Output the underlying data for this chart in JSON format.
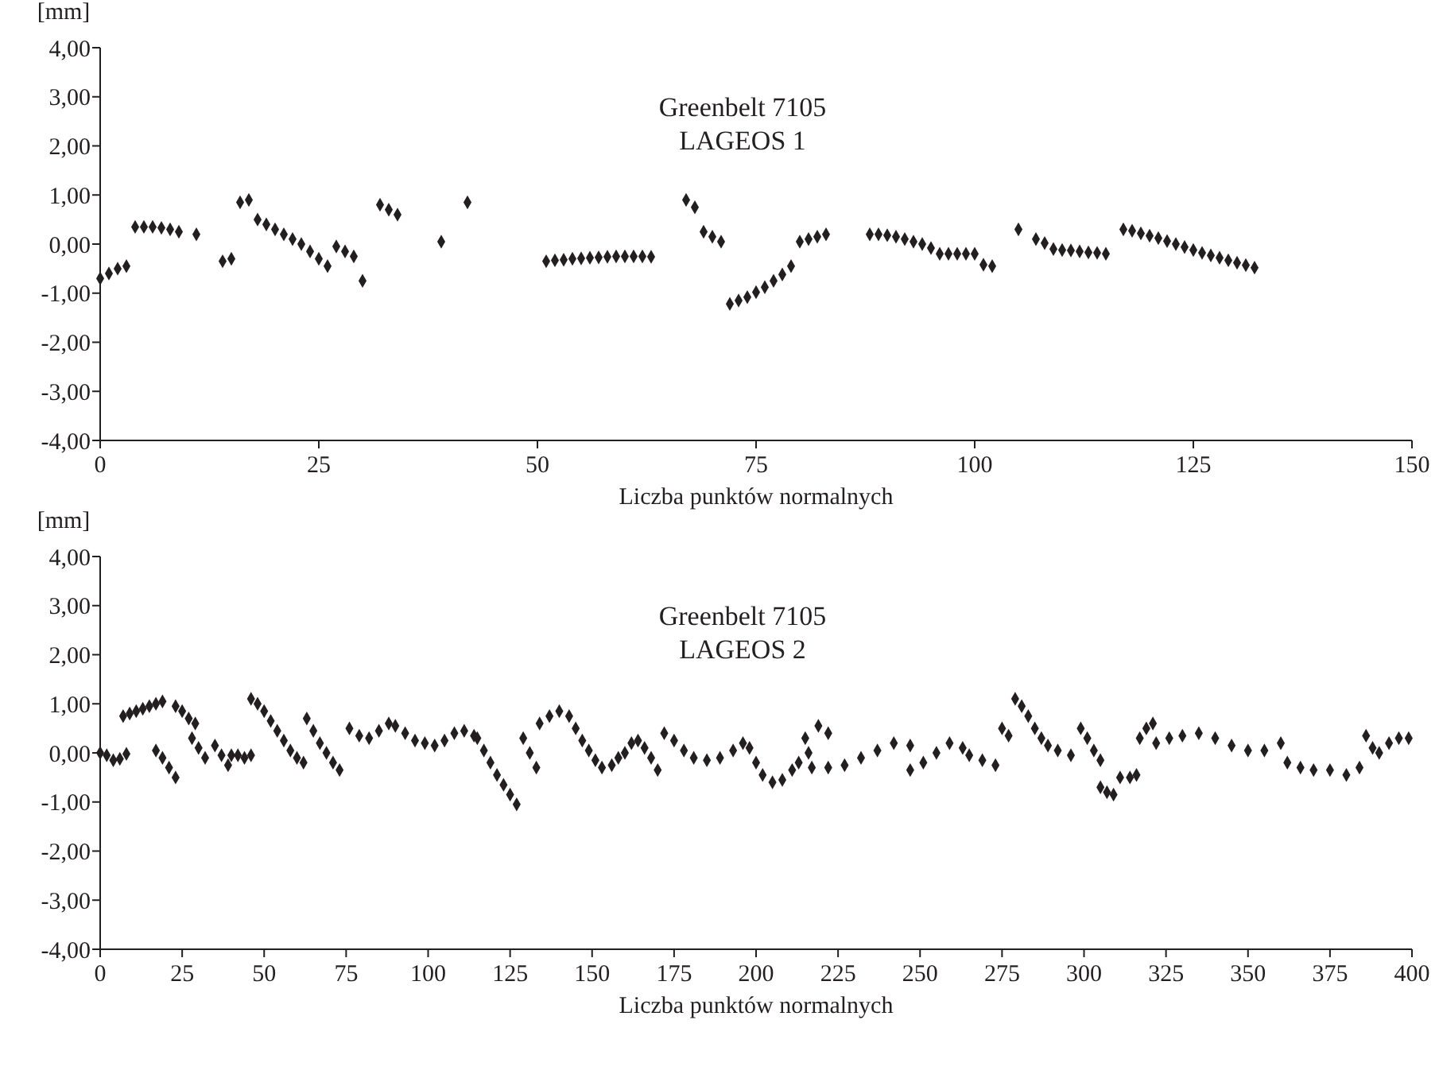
{
  "chart_data": [
    {
      "type": "scatter",
      "title": "Greenbelt 7105",
      "subtitle": "LAGEOS 1",
      "xlabel": "Liczba punktów normalnych",
      "ylabel": "[mm]",
      "marker": "diamond",
      "grid": false,
      "xlim": [
        0,
        150
      ],
      "xticks": [
        0,
        25,
        50,
        75,
        100,
        125,
        150
      ],
      "ylim": [
        -4,
        4
      ],
      "yticks": [
        {
          "value": 4,
          "label": "4,00"
        },
        {
          "value": 3,
          "label": "3,00"
        },
        {
          "value": 2,
          "label": "2,00"
        },
        {
          "value": 1,
          "label": "1,00"
        },
        {
          "value": 0,
          "label": "0,00"
        },
        {
          "value": -1,
          "label": "-1,00"
        },
        {
          "value": -2,
          "label": "-2,00"
        },
        {
          "value": -3,
          "label": "-3,00"
        },
        {
          "value": -4,
          "label": "-4,00"
        }
      ],
      "series": [
        {
          "color": "#231f20",
          "x": [
            0,
            1,
            2,
            3,
            4,
            5,
            6,
            7,
            8,
            9,
            11,
            14,
            15,
            16,
            17,
            18,
            19,
            20,
            21,
            22,
            23,
            24,
            25,
            26,
            27,
            28,
            29,
            30,
            32,
            33,
            34,
            39,
            42,
            51,
            52,
            53,
            54,
            55,
            56,
            57,
            58,
            59,
            60,
            61,
            62,
            63,
            67,
            68,
            69,
            70,
            71,
            72,
            73,
            74,
            75,
            76,
            77,
            78,
            79,
            80,
            81,
            82,
            83,
            88,
            89,
            90,
            91,
            92,
            93,
            94,
            95,
            96,
            97,
            98,
            99,
            100,
            101,
            102,
            105,
            107,
            108,
            109,
            110,
            111,
            112,
            113,
            114,
            115,
            117,
            118,
            119,
            120,
            121,
            122,
            123,
            124,
            125,
            126,
            127,
            128,
            129,
            130,
            131,
            132
          ],
          "values": [
            -0.7,
            -0.6,
            -0.5,
            -0.45,
            0.35,
            0.35,
            0.35,
            0.33,
            0.3,
            0.25,
            0.2,
            -0.35,
            -0.3,
            0.85,
            0.9,
            0.5,
            0.4,
            0.3,
            0.2,
            0.1,
            0,
            -0.15,
            -0.3,
            -0.45,
            -0.05,
            -0.15,
            -0.25,
            -0.75,
            0.8,
            0.7,
            0.6,
            0.05,
            0.85,
            -0.35,
            -0.33,
            -0.32,
            -0.3,
            -0.29,
            -0.28,
            -0.27,
            -0.26,
            -0.25,
            -0.25,
            -0.25,
            -0.25,
            -0.26,
            0.9,
            0.75,
            0.25,
            0.15,
            0.05,
            -1.22,
            -1.15,
            -1.08,
            -0.98,
            -0.88,
            -0.75,
            -0.62,
            -0.45,
            0.05,
            0.1,
            0.15,
            0.2,
            0.2,
            0.2,
            0.18,
            0.15,
            0.1,
            0.05,
            0,
            -0.08,
            -0.2,
            -0.2,
            -0.2,
            -0.2,
            -0.2,
            -0.42,
            -0.45,
            0.3,
            0.1,
            0.02,
            -0.1,
            -0.12,
            -0.13,
            -0.15,
            -0.17,
            -0.18,
            -0.2,
            0.3,
            0.27,
            0.22,
            0.17,
            0.12,
            0.06,
            0,
            -0.06,
            -0.12,
            -0.18,
            -0.23,
            -0.28,
            -0.33,
            -0.38,
            -0.43,
            -0.48
          ]
        }
      ]
    },
    {
      "type": "scatter",
      "title": "Greenbelt 7105",
      "subtitle": "LAGEOS 2",
      "xlabel": "Liczba punktów normalnych",
      "ylabel": "[mm]",
      "marker": "diamond",
      "grid": false,
      "xlim": [
        0,
        400
      ],
      "xticks": [
        0,
        25,
        50,
        75,
        100,
        125,
        150,
        175,
        200,
        225,
        250,
        275,
        300,
        325,
        350,
        375,
        400
      ],
      "ylim": [
        -4,
        4
      ],
      "yticks": [
        {
          "value": 4,
          "label": "4,00"
        },
        {
          "value": 3,
          "label": "3,00"
        },
        {
          "value": 2,
          "label": "2,00"
        },
        {
          "value": 1,
          "label": "1,00"
        },
        {
          "value": 0,
          "label": "0,00"
        },
        {
          "value": -1,
          "label": "-1,00"
        },
        {
          "value": -2,
          "label": "-2,00"
        },
        {
          "value": -3,
          "label": "-3,00"
        },
        {
          "value": -4,
          "label": "-4,00"
        }
      ],
      "series": [
        {
          "color": "#231f20",
          "x": [
            0,
            2,
            4,
            6,
            8,
            7,
            9,
            11,
            13,
            15,
            17,
            19,
            23,
            25,
            27,
            29,
            17,
            19,
            21,
            23,
            28,
            30,
            32,
            35,
            37,
            39,
            40,
            42,
            44,
            46,
            46,
            48,
            50,
            52,
            54,
            56,
            58,
            60,
            62,
            63,
            65,
            67,
            69,
            71,
            73,
            76,
            79,
            82,
            85,
            88,
            90,
            93,
            96,
            99,
            102,
            105,
            108,
            111,
            114,
            115,
            117,
            119,
            121,
            123,
            125,
            127,
            129,
            131,
            133,
            134,
            137,
            140,
            143,
            145,
            147,
            149,
            151,
            153,
            156,
            158,
            160,
            162,
            164,
            166,
            168,
            170,
            172,
            175,
            178,
            181,
            185,
            189,
            193,
            196,
            198,
            200,
            202,
            205,
            208,
            211,
            213,
            215,
            216,
            217,
            219,
            222,
            222,
            227,
            232,
            237,
            242,
            247,
            247,
            251,
            255,
            259,
            263,
            265,
            269,
            273,
            275,
            277,
            279,
            281,
            283,
            285,
            287,
            289,
            292,
            296,
            299,
            301,
            303,
            305,
            305,
            307,
            309,
            311,
            314,
            316,
            317,
            319,
            321,
            322,
            326,
            330,
            335,
            340,
            345,
            350,
            355,
            360,
            362,
            366,
            370,
            375,
            380,
            384,
            386,
            388,
            390,
            393,
            396,
            399
          ],
          "values": [
            0,
            -0.05,
            -0.15,
            -0.12,
            -0.02,
            0.75,
            0.8,
            0.85,
            0.9,
            0.95,
            1.0,
            1.05,
            0.95,
            0.85,
            0.7,
            0.6,
            0.05,
            -0.1,
            -0.3,
            -0.5,
            0.3,
            0.1,
            -0.1,
            0.15,
            -0.05,
            -0.25,
            -0.05,
            -0.05,
            -0.1,
            -0.05,
            1.1,
            1.0,
            0.85,
            0.65,
            0.45,
            0.25,
            0.05,
            -0.1,
            -0.2,
            0.7,
            0.45,
            0.2,
            0,
            -0.2,
            -0.35,
            0.5,
            0.35,
            0.3,
            0.45,
            0.6,
            0.55,
            0.4,
            0.25,
            0.2,
            0.15,
            0.25,
            0.4,
            0.45,
            0.35,
            0.3,
            0.05,
            -0.2,
            -0.45,
            -0.65,
            -0.85,
            -1.05,
            0.3,
            0,
            -0.3,
            0.6,
            0.75,
            0.85,
            0.75,
            0.5,
            0.25,
            0.05,
            -0.15,
            -0.3,
            -0.25,
            -0.1,
            0,
            0.2,
            0.25,
            0.1,
            -0.1,
            -0.35,
            0.4,
            0.25,
            0.05,
            -0.1,
            -0.15,
            -0.1,
            0.05,
            0.2,
            0.1,
            -0.2,
            -0.45,
            -0.6,
            -0.55,
            -0.35,
            -0.2,
            0.3,
            0,
            -0.3,
            0.55,
            0.4,
            -0.3,
            -0.25,
            -0.1,
            0.05,
            0.2,
            0.15,
            -0.35,
            -0.2,
            0,
            0.2,
            0.1,
            -0.05,
            -0.15,
            -0.25,
            0.5,
            0.35,
            1.1,
            0.95,
            0.75,
            0.5,
            0.3,
            0.15,
            0.05,
            -0.05,
            0.5,
            0.3,
            0.05,
            -0.15,
            -0.7,
            -0.8,
            -0.85,
            -0.5,
            -0.5,
            -0.45,
            0.3,
            0.5,
            0.6,
            0.2,
            0.3,
            0.35,
            0.4,
            0.3,
            0.15,
            0.05,
            0.05,
            0.2,
            -0.2,
            -0.3,
            -0.35,
            -0.35,
            -0.45,
            -0.3,
            0.35,
            0.1,
            0,
            0.2,
            0.3,
            0.3
          ]
        }
      ]
    }
  ]
}
